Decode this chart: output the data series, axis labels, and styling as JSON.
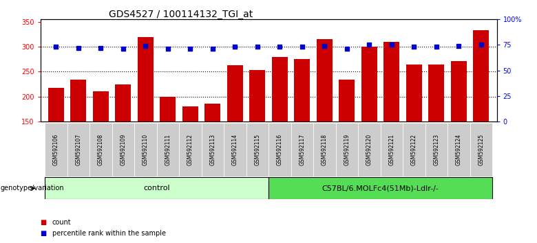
{
  "title": "GDS4527 / 100114132_TGI_at",
  "categories": [
    "GSM592106",
    "GSM592107",
    "GSM592108",
    "GSM592109",
    "GSM592110",
    "GSM592111",
    "GSM592112",
    "GSM592113",
    "GSM592114",
    "GSM592115",
    "GSM592116",
    "GSM592117",
    "GSM592118",
    "GSM592119",
    "GSM592120",
    "GSM592121",
    "GSM592122",
    "GSM592123",
    "GSM592124",
    "GSM592125"
  ],
  "bar_values": [
    218,
    234,
    210,
    225,
    320,
    200,
    181,
    186,
    263,
    254,
    280,
    276,
    315,
    234,
    300,
    310,
    264,
    265,
    272,
    333
  ],
  "dot_values": [
    73,
    72,
    72,
    71,
    74,
    71,
    71,
    71,
    73,
    73,
    73,
    73,
    74,
    71,
    75,
    75,
    73,
    73,
    74,
    75
  ],
  "bar_color": "#CC0000",
  "dot_color": "#0000CC",
  "ylim_left": [
    150,
    355
  ],
  "ylim_right": [
    0,
    100
  ],
  "yticks_left": [
    150,
    200,
    250,
    300,
    350
  ],
  "yticks_right": [
    0,
    25,
    50,
    75,
    100
  ],
  "ytick_labels_right": [
    "0",
    "25",
    "50",
    "75",
    "100%"
  ],
  "grid_values": [
    200,
    250,
    300
  ],
  "group_labels": [
    "control",
    "C57BL/6.MOLFc4(51Mb)-Ldlr-/-"
  ],
  "group_colors": [
    "#ccffcc",
    "#55dd55"
  ],
  "genotype_label": "genotype/variation",
  "legend_count_label": "count",
  "legend_percentile_label": "percentile rank within the sample",
  "background_color": "#ffffff",
  "plot_bg_color": "#ffffff",
  "tick_label_bg": "#cccccc",
  "title_fontsize": 10,
  "tick_fontsize": 7,
  "label_fontsize": 8
}
